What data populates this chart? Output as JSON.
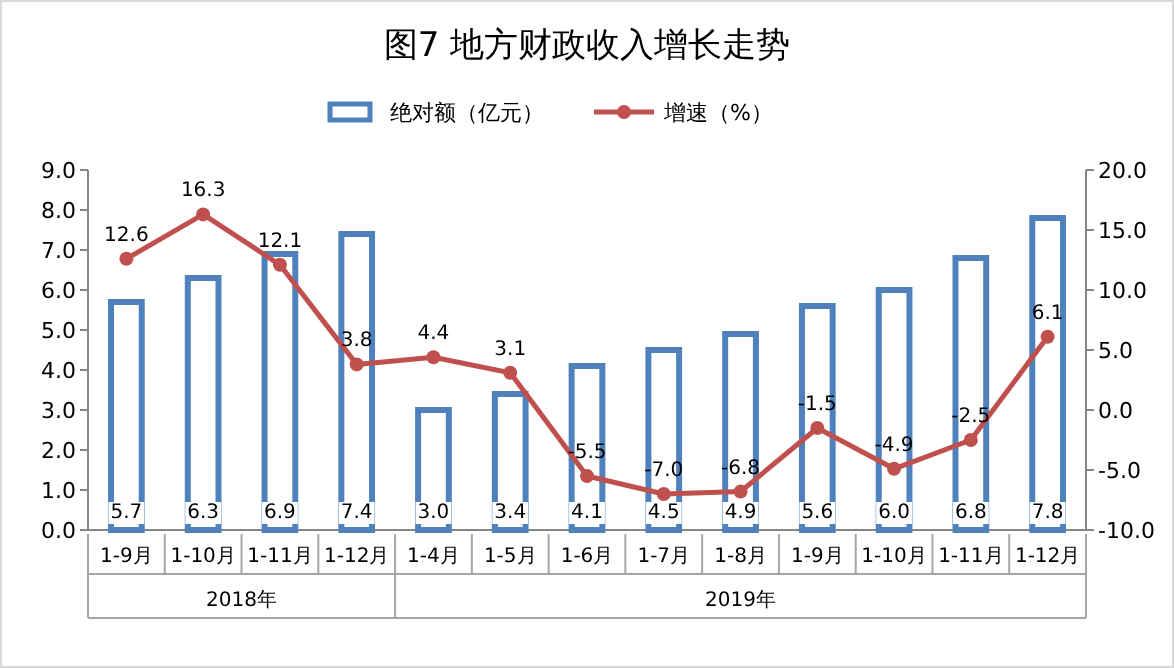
{
  "chart_data": {
    "type": "bar",
    "title": "图7 地方财政收入增长走势",
    "categories": [
      "1-9月",
      "1-10月",
      "1-11月",
      "1-12月",
      "1-4月",
      "1-5月",
      "1-6月",
      "1-7月",
      "1-8月",
      "1-9月",
      "1-10月",
      "1-11月",
      "1-12月"
    ],
    "series": [
      {
        "name": "绝对额（亿元）",
        "color": "#4f81bd",
        "values": [
          5.7,
          6.3,
          6.9,
          7.4,
          3.0,
          3.4,
          4.1,
          4.5,
          4.9,
          5.6,
          6.0,
          6.8,
          7.8
        ],
        "value_labels": [
          "5.7",
          "6.3",
          "6.9",
          "7.4",
          "3.0",
          "3.4",
          "4.1",
          "4.5",
          "4.9",
          "5.6",
          "6.0",
          "6.8",
          "7.8"
        ]
      },
      {
        "name": "增速（%）",
        "type": "line",
        "axis": "y2",
        "color": "#c0504d",
        "marker": "circle",
        "values": [
          12.6,
          16.3,
          12.1,
          3.8,
          4.4,
          3.1,
          -5.5,
          -7.0,
          -6.8,
          -1.5,
          -4.9,
          -2.5,
          6.1
        ],
        "value_labels": [
          "12.6",
          "16.3",
          "12.1",
          "3.8",
          "4.4",
          "3.1",
          "-5.5",
          "-7.0",
          "-6.8",
          "-1.5",
          "-4.9",
          "-2.5",
          "6.1"
        ]
      }
    ],
    "ylim": [
      0,
      9
    ],
    "yticks": [
      {
        "value": 0,
        "label": "0.0"
      },
      {
        "value": 1,
        "label": "1.0"
      },
      {
        "value": 2,
        "label": "2.0"
      },
      {
        "value": 3,
        "label": "3.0"
      },
      {
        "value": 4,
        "label": "4.0"
      },
      {
        "value": 5,
        "label": "5.0"
      },
      {
        "value": 6,
        "label": "6.0"
      },
      {
        "value": 7,
        "label": "7.0"
      },
      {
        "value": 8,
        "label": "8.0"
      },
      {
        "value": 9,
        "label": "9.0"
      }
    ],
    "y2lim": [
      -10,
      20
    ],
    "y2ticks": [
      {
        "value": -10,
        "label": "-10.0"
      },
      {
        "value": -5,
        "label": "-5.0"
      },
      {
        "value": 0,
        "label": "0.0"
      },
      {
        "value": 5,
        "label": "5.0"
      },
      {
        "value": 10,
        "label": "10.0"
      },
      {
        "value": 15,
        "label": "15.0"
      },
      {
        "value": 20,
        "label": "20.0"
      }
    ],
    "annotations": [
      "2018年",
      "2019年"
    ],
    "legend": "top",
    "grid": false
  }
}
